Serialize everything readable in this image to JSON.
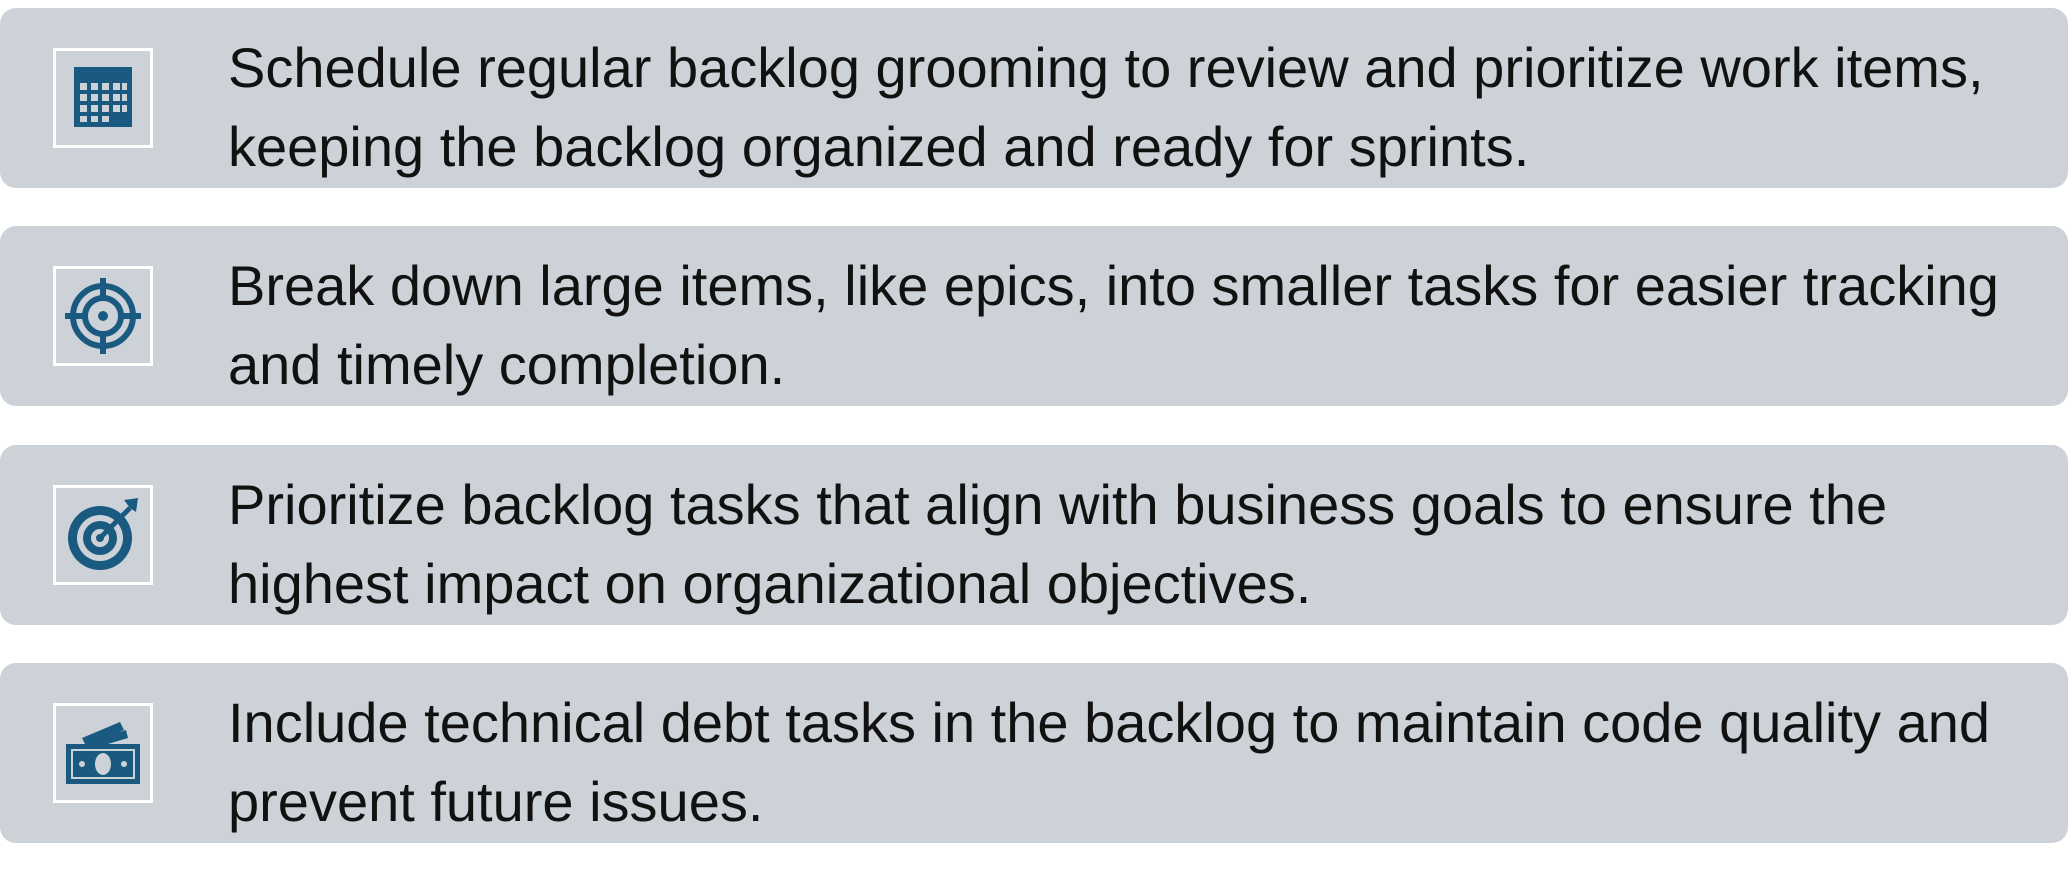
{
  "theme": {
    "row_bg": "#cdd2d9",
    "icon_color": "#1a5a80",
    "icon_frame": "#ffffff",
    "text_color": "#111111"
  },
  "items": [
    {
      "icon": "calendar-icon",
      "text": "Schedule regular backlog grooming to review and prioritize work items, keeping the backlog organized and ready for sprints."
    },
    {
      "icon": "crosshair-icon",
      "text": "Break down large items, like epics, into smaller tasks for easier tracking and timely completion."
    },
    {
      "icon": "target-arrow-icon",
      "text": "Prioritize backlog tasks that align with business goals to ensure the highest impact on organizational objectives."
    },
    {
      "icon": "money-icon",
      "text": "Include technical debt tasks in the backlog to maintain code quality and prevent future issues."
    }
  ]
}
